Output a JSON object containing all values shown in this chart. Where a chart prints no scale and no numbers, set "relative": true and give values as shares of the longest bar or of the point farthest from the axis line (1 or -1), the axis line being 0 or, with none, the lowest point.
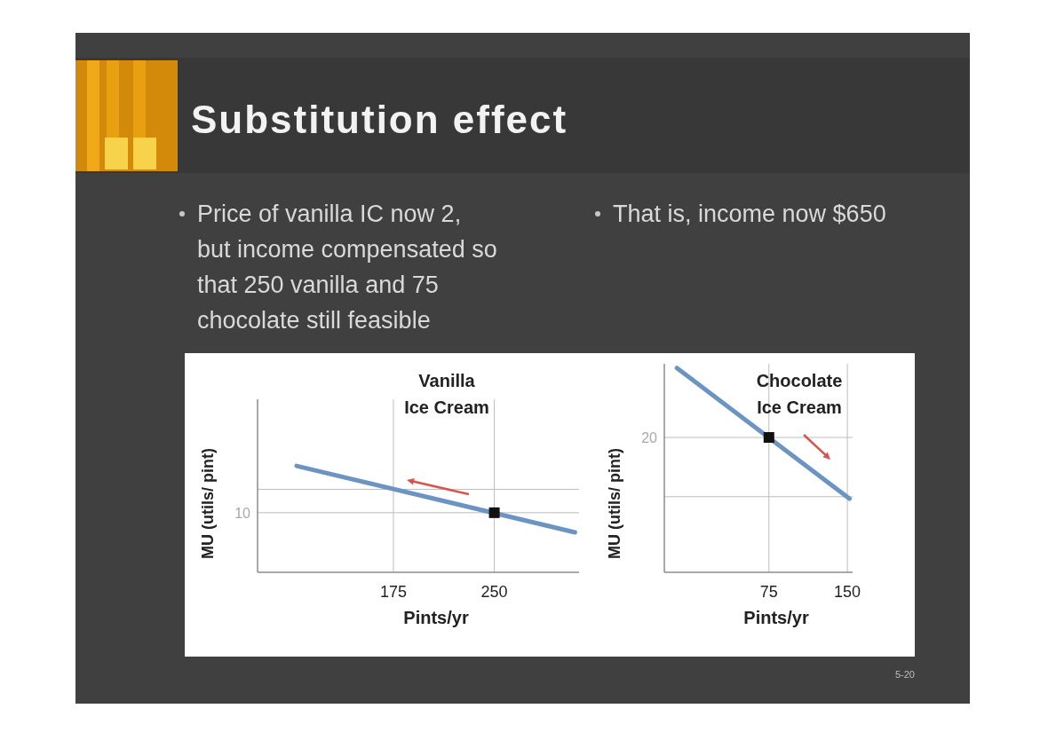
{
  "chart_data": [
    {
      "type": "other",
      "title": "Substitution effect",
      "annotations": [
        "Price of vanilla IC now 2, but income compensated so that 250 vanilla and 75 chocolate still feasible",
        "That is, income now $650",
        "5-20"
      ]
    },
    {
      "type": "line",
      "title": "Vanilla\nIce Cream",
      "xlabel": "Pints/yr",
      "ylabel": "MU (utils/ pint)",
      "relative": true,
      "xlim": [
        74,
        313
      ],
      "xticks": [
        175,
        250
      ],
      "annotations": [
        "10"
      ],
      "series": [
        {
          "type": "line",
          "color": "#6b93c3",
          "x": [
            103,
            310
          ],
          "values": [
            1,
            0.375
          ]
        },
        {
          "type": "scatter",
          "color": "#111111",
          "marker": "square",
          "x": [
            250
          ],
          "values": [
            0.56
          ]
        }
      ],
      "ref_lines": [
        {
          "axis": "x",
          "value": 175
        },
        {
          "axis": "x",
          "value": 250
        },
        {
          "axis": "y",
          "value": 0.56
        },
        {
          "axis": "y",
          "value": 0.78
        }
      ]
    },
    {
      "type": "line",
      "title": "Chocolate\nIce Cream",
      "xlabel": "Pints/yr",
      "ylabel": "MU (utils/ pint)",
      "relative": true,
      "xlim": [
        -25,
        155
      ],
      "xticks": [
        75,
        150
      ],
      "annotations": [
        "20"
      ],
      "series": [
        {
          "type": "line",
          "color": "#6b93c3",
          "x": [
            -13,
            152
          ],
          "values": [
            1,
            0.36
          ]
        },
        {
          "type": "scatter",
          "color": "#111111",
          "marker": "square",
          "x": [
            75
          ],
          "values": [
            0.66
          ]
        }
      ],
      "ref_lines": [
        {
          "axis": "x",
          "value": 75
        },
        {
          "axis": "x",
          "value": 150
        },
        {
          "axis": "y",
          "value": 0.66
        },
        {
          "axis": "y",
          "value": 0.37
        }
      ]
    }
  ]
}
